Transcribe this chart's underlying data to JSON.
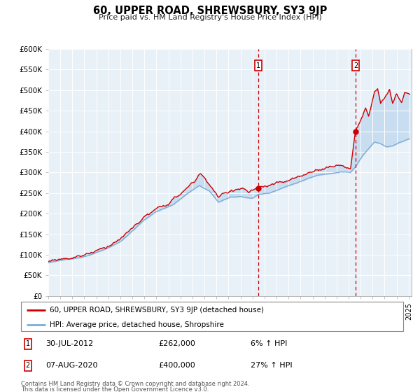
{
  "title": "60, UPPER ROAD, SHREWSBURY, SY3 9JP",
  "subtitle": "Price paid vs. HM Land Registry's House Price Index (HPI)",
  "legend_line1": "60, UPPER ROAD, SHREWSBURY, SY3 9JP (detached house)",
  "legend_line2": "HPI: Average price, detached house, Shropshire",
  "annotation1_date": "30-JUL-2012",
  "annotation1_price": 262000,
  "annotation1_label": "6% ↑ HPI",
  "annotation1_num": "1",
  "annotation2_date": "07-AUG-2020",
  "annotation2_price": 400000,
  "annotation2_label": "27% ↑ HPI",
  "annotation2_num": "2",
  "footer": "Contains HM Land Registry data © Crown copyright and database right 2024.\nThis data is licensed under the Open Government Licence v3.0.",
  "hpi_color": "#7aadd4",
  "property_color": "#cc0000",
  "fill_color": "#c8ddf0",
  "background_color": "#ffffff",
  "plot_bg_color": "#e8f0f8",
  "annotation_box_color": "#cc0000",
  "dashed_line_color": "#cc0000",
  "ylim": [
    0,
    600000
  ],
  "start_year": 1995,
  "end_year": 2025
}
